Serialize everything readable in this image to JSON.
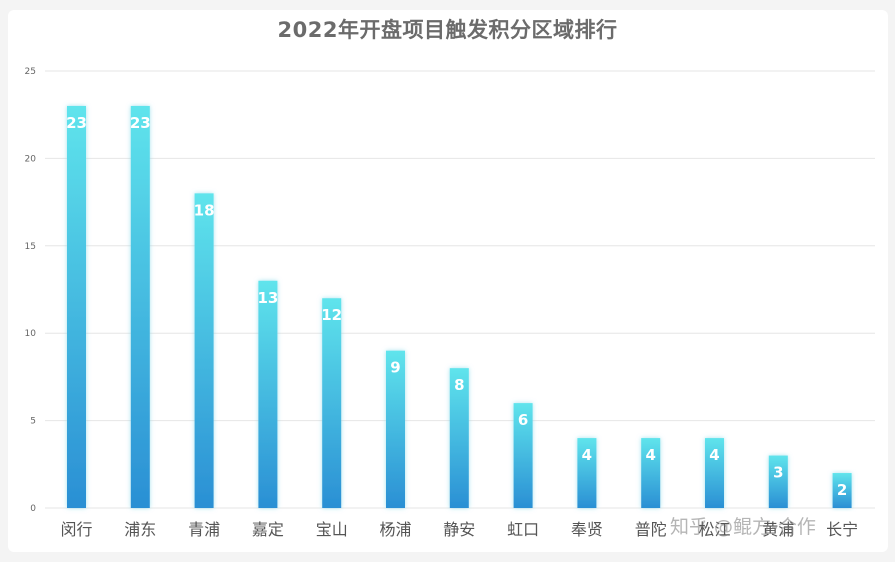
{
  "chart_data": {
    "type": "bar",
    "title": "2022年开盘项目触发积分区域排行",
    "categories": [
      "闵行",
      "浦东",
      "青浦",
      "嘉定",
      "宝山",
      "杨浦",
      "静安",
      "虹口",
      "奉贤",
      "普陀",
      "松江",
      "黄浦",
      "长宁"
    ],
    "values": [
      23,
      23,
      18,
      13,
      12,
      9,
      8,
      6,
      4,
      4,
      4,
      3,
      2
    ],
    "ylim": [
      0,
      25
    ],
    "yticks": [
      0,
      5,
      10,
      15,
      20,
      25
    ],
    "grid": true,
    "legend": "none",
    "colors": {
      "bar_top": "#5fe4ec",
      "bar_bottom": "#2a8fd4",
      "grid": "#e6e6e6",
      "axis_text": "#555555",
      "label_text": "#ffffff"
    }
  },
  "watermark": "知乎 @鲲方-合作"
}
